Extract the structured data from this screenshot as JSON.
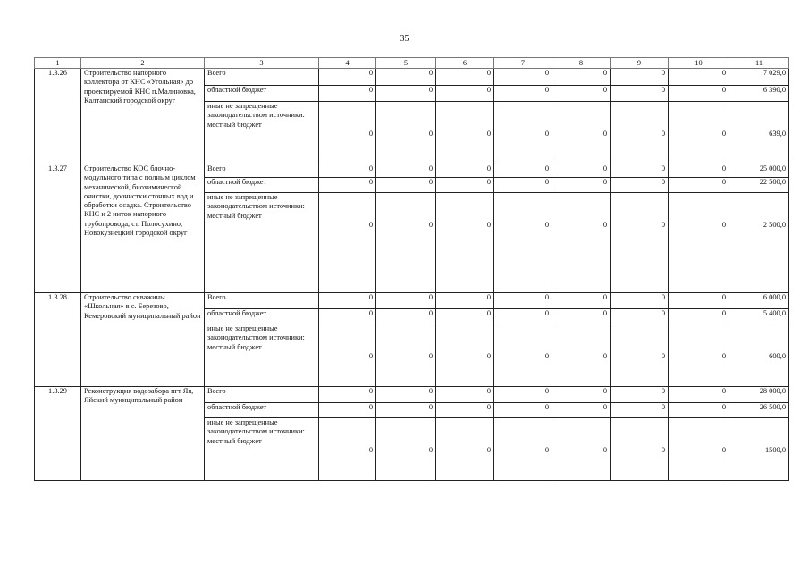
{
  "page_number": "35",
  "columns": [
    "1",
    "2",
    "3",
    "4",
    "5",
    "6",
    "7",
    "8",
    "9",
    "10",
    "11"
  ],
  "rows": [
    {
      "code": "1.3.26",
      "name": "Строительство напорного коллектора от КНС «Угольная» до проектируемой КНС п.Малиновка, Калтанский городской округ",
      "lines": [
        {
          "source": "Всего",
          "values": [
            "0",
            "0",
            "0",
            "0",
            "0",
            "0",
            "0",
            "7 029,0"
          ]
        },
        {
          "source": "областной бюджет",
          "values": [
            "0",
            "0",
            "0",
            "0",
            "0",
            "0",
            "0",
            "6 390,0"
          ]
        },
        {
          "source": "иные не запрещенные законодательством источники: местный бюджет",
          "values": [
            "0",
            "0",
            "0",
            "0",
            "0",
            "0",
            "0",
            "639,0"
          ]
        }
      ]
    },
    {
      "code": "1.3.27",
      "name": "Строительство КОС блочно-модульного типа с полным циклом механической, биохимической очистки, доочистки сточных вод и обработки осадка. Строительство КНС и 2 ниток напорного трубопровода, ст. Полосухино, Новокузнецкий городской округ",
      "lines": [
        {
          "source": "Всего",
          "values": [
            "0",
            "0",
            "0",
            "0",
            "0",
            "0",
            "0",
            "25 000,0"
          ]
        },
        {
          "source": "областной бюджет",
          "values": [
            "0",
            "0",
            "0",
            "0",
            "0",
            "0",
            "0",
            "22 500,0"
          ]
        },
        {
          "source": "иные не запрещенные законодательством источники: местный бюджет",
          "values": [
            "0",
            "0",
            "0",
            "0",
            "0",
            "0",
            "0",
            "2 500,0"
          ]
        }
      ]
    },
    {
      "code": "1.3.28",
      "name": "Строительство скважины «Школьная» в с. Березово, Кемеровский муниципальный район",
      "lines": [
        {
          "source": "Всего",
          "values": [
            "0",
            "0",
            "0",
            "0",
            "0",
            "0",
            "0",
            "6 000,0"
          ]
        },
        {
          "source": "областной бюджет",
          "values": [
            "0",
            "0",
            "0",
            "0",
            "0",
            "0",
            "0",
            "5 400,0"
          ]
        },
        {
          "source": "иные не запрещенные законодательством источники: местный бюджет",
          "values": [
            "0",
            "0",
            "0",
            "0",
            "0",
            "0",
            "0",
            "600,0"
          ]
        }
      ]
    },
    {
      "code": "1.3.29",
      "name": "Реконструкция водозабора пгт Яя, Яйский муниципальный район",
      "lines": [
        {
          "source": "Всего",
          "values": [
            "0",
            "0",
            "0",
            "0",
            "0",
            "0",
            "0",
            "28 000,0"
          ]
        },
        {
          "source": "областной бюджет",
          "values": [
            "0",
            "0",
            "0",
            "0",
            "0",
            "0",
            "0",
            "26 500,0"
          ]
        },
        {
          "source": "иные не запрещенные законодательством источники: местный бюджет",
          "values": [
            "0",
            "0",
            "0",
            "0",
            "0",
            "0",
            "0",
            "1500,0"
          ]
        }
      ]
    }
  ]
}
